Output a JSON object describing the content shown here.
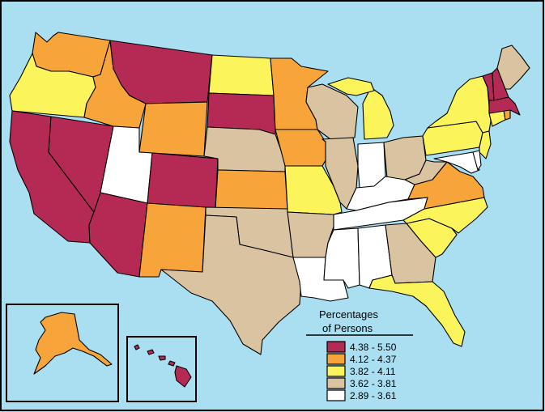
{
  "colors": {
    "ocean": "#a9dff0",
    "c1": "#b52a55",
    "c2": "#f7a43a",
    "c3": "#fbf45a",
    "c4": "#d9c3a1",
    "c5": "#ffffff"
  },
  "legend": {
    "title_line1": "Percentages",
    "title_line2": "of Persons",
    "items": [
      {
        "label": "4.38 - 5.50",
        "color": "#b52a55"
      },
      {
        "label": "4.12 - 4.37",
        "color": "#f7a43a"
      },
      {
        "label": "3.82 - 4.11",
        "color": "#fbf45a"
      },
      {
        "label": "3.62 - 3.81",
        "color": "#d9c3a1"
      },
      {
        "label": "2.89 - 3.61",
        "color": "#ffffff"
      }
    ]
  },
  "states": [
    {
      "name": "Washington",
      "cls": 2
    },
    {
      "name": "Oregon",
      "cls": 3
    },
    {
      "name": "California",
      "cls": 1
    },
    {
      "name": "Nevada",
      "cls": 1
    },
    {
      "name": "Idaho",
      "cls": 2
    },
    {
      "name": "Montana",
      "cls": 1
    },
    {
      "name": "Wyoming",
      "cls": 2
    },
    {
      "name": "Utah",
      "cls": 5
    },
    {
      "name": "Arizona",
      "cls": 1
    },
    {
      "name": "Colorado",
      "cls": 1
    },
    {
      "name": "New Mexico",
      "cls": 2
    },
    {
      "name": "North Dakota",
      "cls": 3
    },
    {
      "name": "South Dakota",
      "cls": 1
    },
    {
      "name": "Nebraska",
      "cls": 4
    },
    {
      "name": "Kansas",
      "cls": 2
    },
    {
      "name": "Oklahoma",
      "cls": 4
    },
    {
      "name": "Texas",
      "cls": 4
    },
    {
      "name": "Minnesota",
      "cls": 2
    },
    {
      "name": "Iowa",
      "cls": 2
    },
    {
      "name": "Missouri",
      "cls": 3
    },
    {
      "name": "Arkansas",
      "cls": 4
    },
    {
      "name": "Louisiana",
      "cls": 5
    },
    {
      "name": "Wisconsin",
      "cls": 4
    },
    {
      "name": "Illinois",
      "cls": 4
    },
    {
      "name": "Michigan",
      "cls": 3
    },
    {
      "name": "Indiana",
      "cls": 5
    },
    {
      "name": "Ohio",
      "cls": 4
    },
    {
      "name": "Kentucky",
      "cls": 5
    },
    {
      "name": "Tennessee",
      "cls": 5
    },
    {
      "name": "Mississippi",
      "cls": 5
    },
    {
      "name": "Alabama",
      "cls": 5
    },
    {
      "name": "Georgia",
      "cls": 4
    },
    {
      "name": "Florida",
      "cls": 3
    },
    {
      "name": "South Carolina",
      "cls": 3
    },
    {
      "name": "North Carolina",
      "cls": 3
    },
    {
      "name": "Virginia",
      "cls": 2
    },
    {
      "name": "West Virginia",
      "cls": 4
    },
    {
      "name": "Pennsylvania",
      "cls": 3
    },
    {
      "name": "New York",
      "cls": 3
    },
    {
      "name": "New Jersey",
      "cls": 3
    },
    {
      "name": "Delaware",
      "cls": 5
    },
    {
      "name": "Maryland",
      "cls": 5
    },
    {
      "name": "Connecticut",
      "cls": 3
    },
    {
      "name": "Rhode Island",
      "cls": 2
    },
    {
      "name": "Massachusetts",
      "cls": 1
    },
    {
      "name": "Vermont",
      "cls": 1
    },
    {
      "name": "New Hampshire",
      "cls": 1
    },
    {
      "name": "Maine",
      "cls": 4
    },
    {
      "name": "Alaska",
      "cls": 2
    },
    {
      "name": "Hawaii",
      "cls": 1
    }
  ]
}
